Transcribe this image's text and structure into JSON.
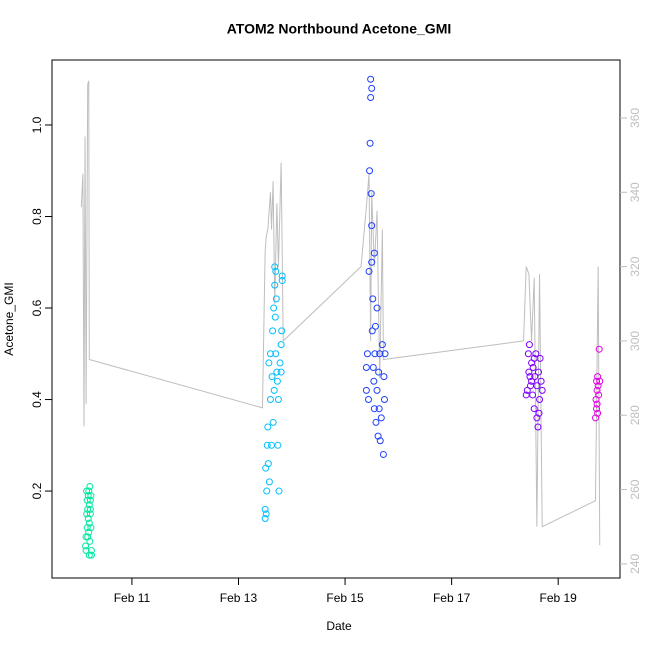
{
  "chart_data": {
    "type": "scatter",
    "title": "ATOM2 Northbound Acetone_GMI",
    "x_label": "Date",
    "y_label": "Acetone_GMI",
    "xlim": [
      9.5,
      20.16
    ],
    "ylim": [
      0.01,
      1.142
    ],
    "y2lim": [
      236.2,
      375.6
    ],
    "xticks": [
      {
        "value": 11,
        "label": "Feb 11"
      },
      {
        "value": 13,
        "label": "Feb 13"
      },
      {
        "value": 15,
        "label": "Feb 15"
      },
      {
        "value": 17,
        "label": "Feb 17"
      },
      {
        "value": 19,
        "label": "Feb 19"
      }
    ],
    "yticks": [
      0.2,
      0.4,
      0.6,
      0.8,
      {
        "value": 1,
        "label": "1.0"
      }
    ],
    "y2ticks": [
      240,
      260,
      280,
      300,
      320,
      340,
      360
    ],
    "y2_color": "#bebebe",
    "series": [
      {
        "type": "line",
        "axis": "y2",
        "color": "#bebebe",
        "x": [
          10.05,
          10.08,
          10.1,
          10.12,
          10.14,
          10.17,
          10.19,
          10.2,
          13.45,
          13.5,
          13.52,
          13.55,
          13.6,
          13.62,
          13.65,
          13.68,
          13.72,
          13.75,
          13.8,
          13.84,
          15.3,
          15.4,
          15.45,
          15.48,
          15.5,
          15.55,
          15.6,
          15.65,
          15.7,
          15.72,
          18.35,
          18.4,
          18.45,
          18.5,
          18.55,
          18.6,
          18.65,
          18.7,
          19.7,
          19.75,
          19.78
        ],
        "values": [
          336,
          345,
          277,
          355,
          283,
          369,
          370,
          295,
          282,
          324,
          328,
          330,
          340,
          330,
          343,
          310,
          337,
          320,
          348,
          300,
          320,
          336,
          345,
          300,
          340,
          320,
          335,
          290,
          330,
          295,
          300,
          320,
          318,
          300,
          317,
          250,
          318,
          250,
          257,
          320,
          245
        ]
      },
      {
        "color": "#00e8a0",
        "x": [
          10.13,
          10.14,
          10.15,
          10.15,
          10.16,
          10.16,
          10.17,
          10.17,
          10.18,
          10.18,
          10.19,
          10.19,
          10.2,
          10.2,
          10.21,
          10.21,
          10.22,
          10.22,
          10.23,
          10.23,
          10.24,
          10.24,
          10.14,
          10.2,
          10.22
        ],
        "values": [
          0.08,
          0.07,
          0.15,
          0.2,
          0.18,
          0.12,
          0.1,
          0.16,
          0.19,
          0.14,
          0.2,
          0.11,
          0.17,
          0.13,
          0.21,
          0.09,
          0.18,
          0.15,
          0.19,
          0.12,
          0.07,
          0.06,
          0.1,
          0.06,
          0.16
        ]
      },
      {
        "color": "#00bfff",
        "x": [
          13.5,
          13.5,
          13.51,
          13.52,
          13.53,
          13.54,
          13.55,
          13.56,
          13.57,
          13.58,
          13.6,
          13.6,
          13.62,
          13.63,
          13.64,
          13.65,
          13.66,
          13.67,
          13.68,
          13.68,
          13.69,
          13.7,
          13.7,
          13.71,
          13.72,
          13.73,
          13.74,
          13.75,
          13.76,
          13.78,
          13.8,
          13.8,
          13.81,
          13.82,
          13.82
        ],
        "values": [
          0.14,
          0.16,
          0.25,
          0.15,
          0.2,
          0.3,
          0.34,
          0.26,
          0.48,
          0.22,
          0.4,
          0.5,
          0.3,
          0.45,
          0.55,
          0.35,
          0.6,
          0.42,
          0.65,
          0.69,
          0.58,
          0.68,
          0.5,
          0.62,
          0.46,
          0.44,
          0.3,
          0.4,
          0.2,
          0.48,
          0.52,
          0.46,
          0.55,
          0.67,
          0.66
        ]
      },
      {
        "color": "#2040ff",
        "x": [
          15.4,
          15.42,
          15.45,
          15.46,
          15.47,
          15.48,
          15.48,
          15.49,
          15.5,
          15.5,
          15.5,
          15.51,
          15.52,
          15.53,
          15.54,
          15.55,
          15.55,
          15.56,
          15.57,
          15.58,
          15.6,
          15.6,
          15.62,
          15.63,
          15.64,
          15.65,
          15.66,
          15.68,
          15.7,
          15.72,
          15.73,
          15.74,
          15.75,
          15.4,
          15.44
        ],
        "values": [
          0.42,
          0.5,
          0.68,
          0.9,
          0.96,
          1.1,
          1.06,
          0.85,
          0.78,
          1.08,
          0.7,
          0.55,
          0.62,
          0.47,
          0.44,
          0.72,
          0.38,
          0.5,
          0.56,
          0.35,
          0.42,
          0.6,
          0.32,
          0.46,
          0.38,
          0.5,
          0.31,
          0.36,
          0.52,
          0.28,
          0.45,
          0.4,
          0.5,
          0.47,
          0.4
        ]
      },
      {
        "color": "#7f00ff",
        "x": [
          18.4,
          18.42,
          18.44,
          18.45,
          18.46,
          18.48,
          18.5,
          18.5,
          18.52,
          18.53,
          18.55,
          18.56,
          18.58,
          18.6,
          18.6,
          18.62,
          18.63,
          18.65,
          18.66,
          18.68,
          18.7,
          18.55,
          18.47,
          18.64
        ],
        "values": [
          0.41,
          0.42,
          0.5,
          0.46,
          0.52,
          0.43,
          0.48,
          0.44,
          0.41,
          0.47,
          0.38,
          0.45,
          0.5,
          0.36,
          0.43,
          0.34,
          0.46,
          0.4,
          0.49,
          0.44,
          0.42,
          0.49,
          0.45,
          0.37
        ]
      },
      {
        "color": "#e600e6",
        "x": [
          19.7,
          19.71,
          19.72,
          19.72,
          19.73,
          19.74,
          19.74,
          19.75,
          19.76,
          19.77,
          19.78,
          19.73
        ],
        "values": [
          0.36,
          0.4,
          0.44,
          0.38,
          0.42,
          0.45,
          0.37,
          0.43,
          0.41,
          0.51,
          0.44,
          0.39
        ]
      }
    ]
  }
}
